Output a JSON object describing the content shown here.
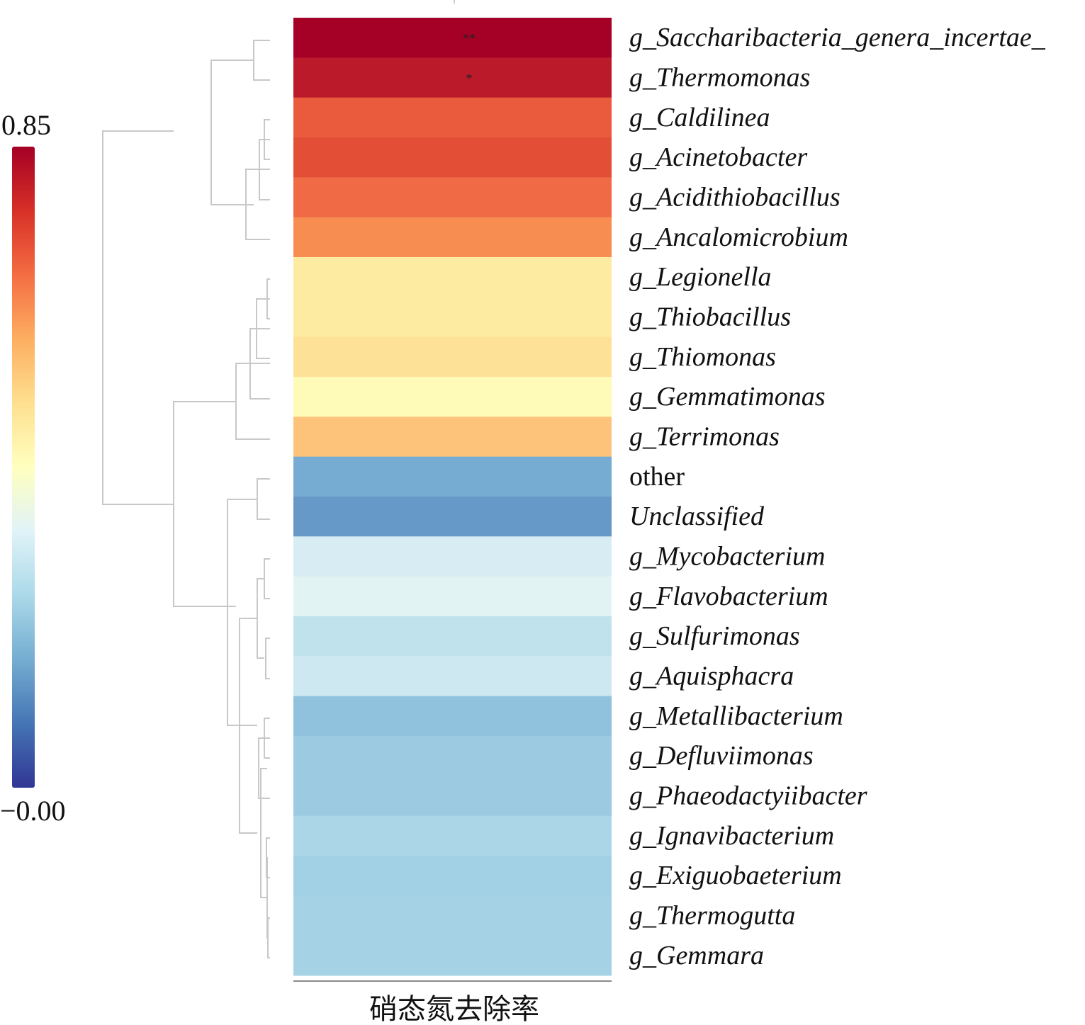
{
  "chart_data": {
    "type": "heatmap",
    "title": "",
    "xlabel": "硝态氮去除率",
    "ylabel": "",
    "columns": [
      "硝态氮去除率"
    ],
    "rows": [
      {
        "label": "g_Saccharibacteria_genera_incertae_",
        "italic": true,
        "value": 0.85,
        "color": "#a50026",
        "significance": "**"
      },
      {
        "label": "g_Thermomonas",
        "italic": true,
        "value": 0.79,
        "color": "#bb1a2b",
        "significance": "*"
      },
      {
        "label": "g_Caldilinea",
        "italic": true,
        "value": 0.69,
        "color": "#ea5a3c",
        "significance": ""
      },
      {
        "label": "g_Acinetobacter",
        "italic": true,
        "value": 0.71,
        "color": "#e24e36",
        "significance": ""
      },
      {
        "label": "g_Acidithiobacillus",
        "italic": true,
        "value": 0.67,
        "color": "#ef6a45",
        "significance": ""
      },
      {
        "label": "g_Ancalomicrobium",
        "italic": true,
        "value": 0.63,
        "color": "#f88d52",
        "significance": ""
      },
      {
        "label": "g_Legionella",
        "italic": true,
        "value": 0.5,
        "color": "#fdeba2",
        "significance": ""
      },
      {
        "label": "g_Thiobacillus",
        "italic": true,
        "value": 0.5,
        "color": "#fdeba2",
        "significance": ""
      },
      {
        "label": "g_Thiomonas",
        "italic": true,
        "value": 0.52,
        "color": "#fde196",
        "significance": ""
      },
      {
        "label": "g_Gemmatimonas",
        "italic": true,
        "value": 0.46,
        "color": "#fefab8",
        "significance": ""
      },
      {
        "label": "g_Terrimonas",
        "italic": true,
        "value": 0.56,
        "color": "#fdc37b",
        "significance": ""
      },
      {
        "label": "other",
        "italic": false,
        "value": 0.19,
        "color": "#77acd2",
        "significance": ""
      },
      {
        "label": "Unclassified",
        "italic": true,
        "value": 0.16,
        "color": "#6699c7",
        "significance": ""
      },
      {
        "label": "g_Mycobacterium",
        "italic": true,
        "value": 0.36,
        "color": "#d8ecf3",
        "significance": ""
      },
      {
        "label": "g_Flavobacterium",
        "italic": true,
        "value": 0.38,
        "color": "#e1f3f3",
        "significance": ""
      },
      {
        "label": "g_Sulfurimonas",
        "italic": true,
        "value": 0.33,
        "color": "#bfe2ec",
        "significance": ""
      },
      {
        "label": "g_Aquisphacra",
        "italic": true,
        "value": 0.34,
        "color": "#cde8f0",
        "significance": ""
      },
      {
        "label": "g_Metallibacterium",
        "italic": true,
        "value": 0.25,
        "color": "#90c2dd",
        "significance": ""
      },
      {
        "label": "g_Defluviimonas",
        "italic": true,
        "value": 0.27,
        "color": "#9bcae1",
        "significance": ""
      },
      {
        "label": "g_Phaeodactyiibacter",
        "italic": true,
        "value": 0.27,
        "color": "#9bcae1",
        "significance": ""
      },
      {
        "label": "g_Ignavibacterium",
        "italic": true,
        "value": 0.3,
        "color": "#abd6e8",
        "significance": ""
      },
      {
        "label": "g_Exiguobaeterium",
        "italic": true,
        "value": 0.28,
        "color": "#a2d0e4",
        "significance": ""
      },
      {
        "label": "g_Thermogutta",
        "italic": true,
        "value": 0.29,
        "color": "#a5d2e5",
        "significance": ""
      },
      {
        "label": "g_Gemmara",
        "italic": true,
        "value": 0.29,
        "color": "#a5d2e5",
        "significance": ""
      }
    ],
    "colorbar": {
      "min": -0.0,
      "max": 0.85,
      "min_label": "−0.00",
      "max_label": "0.85",
      "colors": [
        "#313695",
        "#4575b4",
        "#74add1",
        "#abd9e9",
        "#e0f3f8",
        "#ffffbf",
        "#fee090",
        "#fdae61",
        "#f46d43",
        "#d73027",
        "#a50026"
      ]
    },
    "dendrogram": "row clustering tree (gray) on the left of the heatmap",
    "legend_position": "left",
    "grid": false
  }
}
